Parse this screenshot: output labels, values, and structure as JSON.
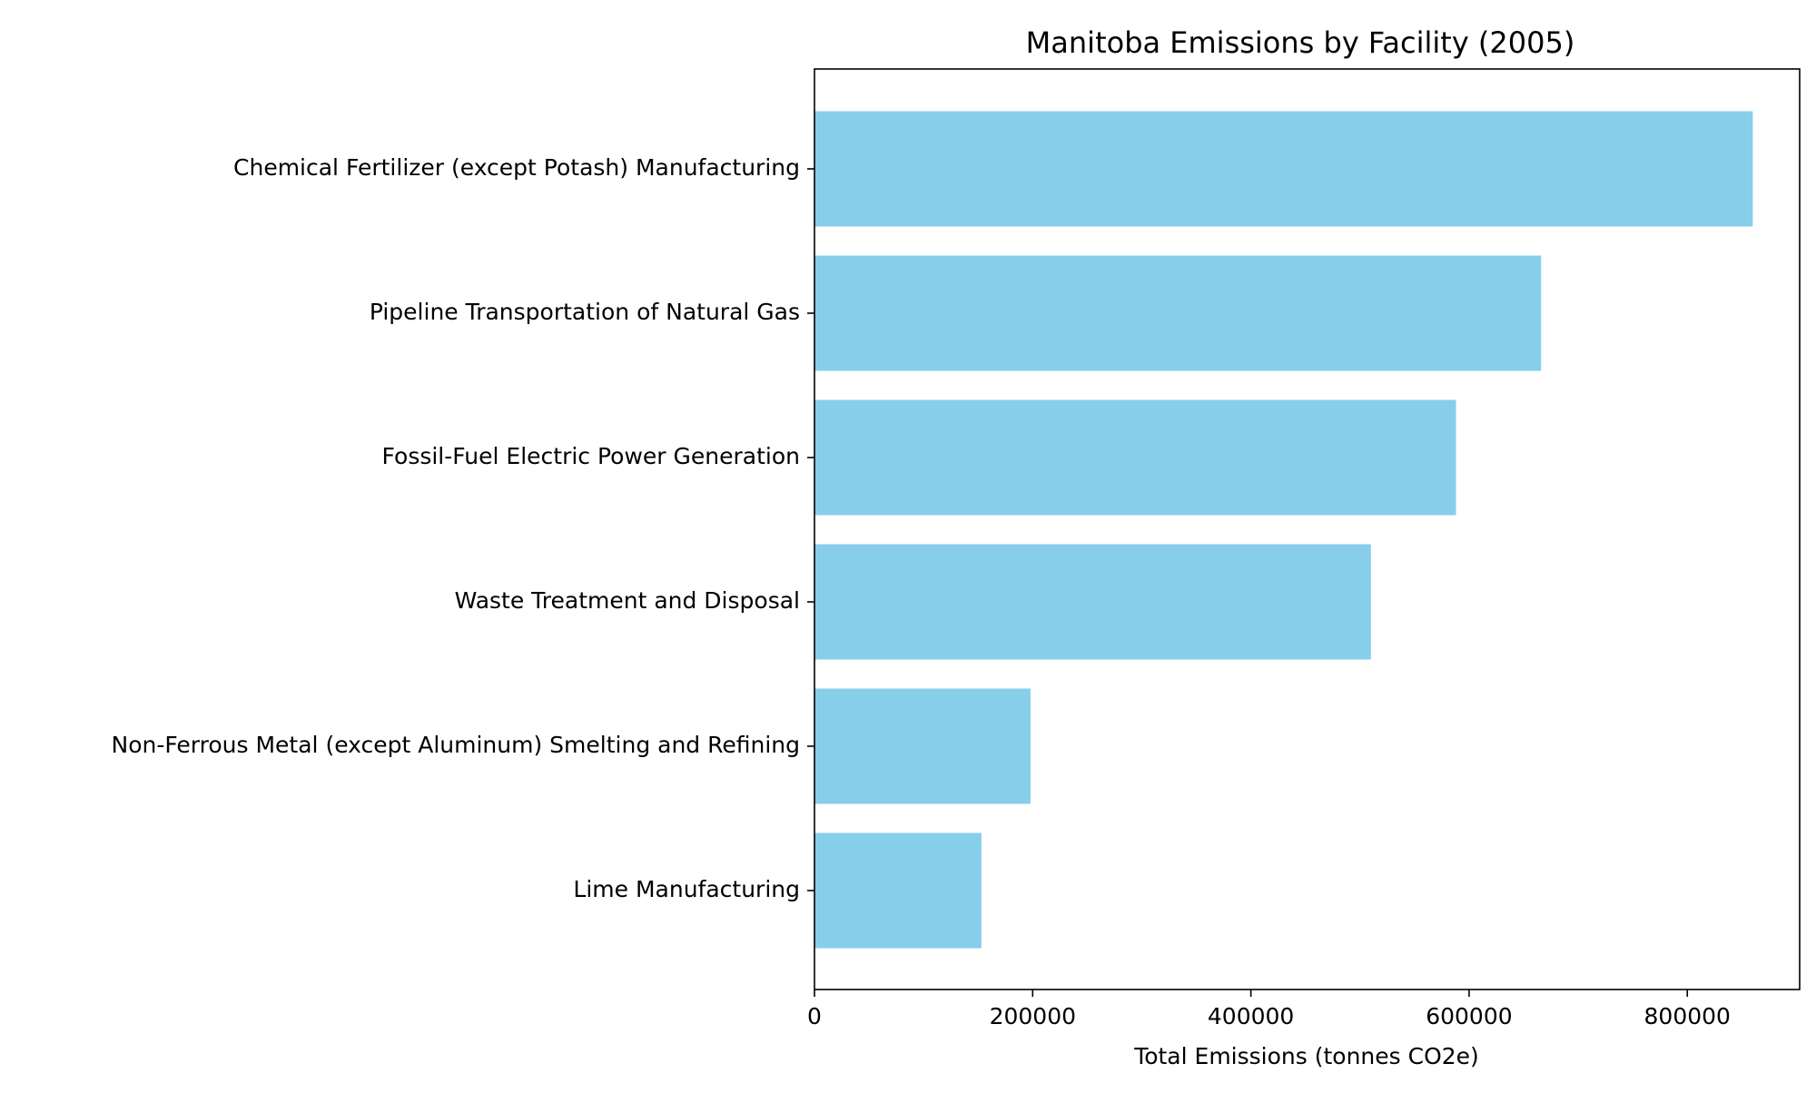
{
  "chart_data": {
    "type": "bar",
    "orientation": "horizontal",
    "title": "Manitoba Emissions by Facility (2005)",
    "xlabel": "Total Emissions (tonnes CO2e)",
    "ylabel": "",
    "categories": [
      "Chemical Fertilizer (except Potash) Manufacturing",
      "Pipeline Transportation of Natural Gas",
      "Fossil-Fuel Electric Power Generation",
      "Waste Treatment and Disposal",
      "Non-Ferrous Metal (except Aluminum) Smelting and Refining",
      "Lime Manufacturing"
    ],
    "values": [
      860000,
      666000,
      588000,
      510000,
      198000,
      153000
    ],
    "xlim": [
      0,
      903000
    ],
    "xticks": [
      0,
      200000,
      400000,
      600000,
      800000
    ],
    "xtick_labels": [
      "0",
      "200000",
      "400000",
      "600000",
      "800000"
    ],
    "grid": false,
    "bar_color": "#87CEEB"
  }
}
